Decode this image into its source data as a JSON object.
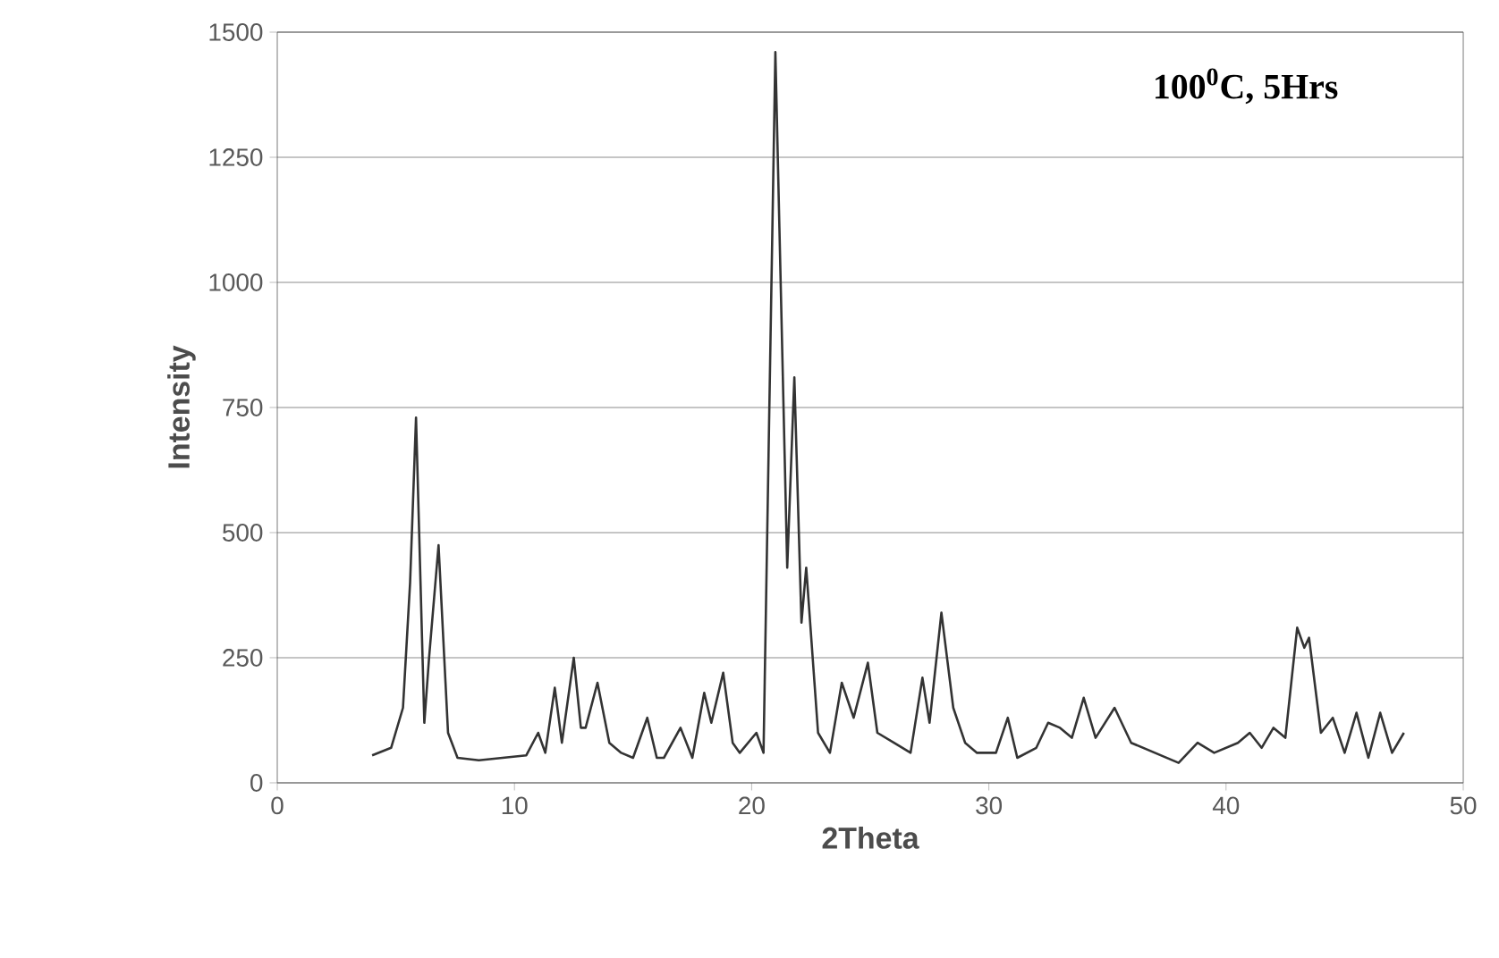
{
  "chart_data": {
    "type": "line",
    "xlabel": "2Theta",
    "ylabel": "Intensity",
    "annotations": [
      "100$^{0}$C, 5Hrs"
    ],
    "xlim": [
      0,
      50
    ],
    "xticks": [
      0,
      10,
      20,
      30,
      40,
      50
    ],
    "ylim": [
      0,
      1500
    ],
    "yticks": [
      0,
      250,
      500,
      750,
      1000,
      1250,
      1500
    ],
    "grid": "y",
    "series": [
      {
        "color": "#333333",
        "x": [
          4,
          4.8,
          5.3,
          5.6,
          5.85,
          6.2,
          6.4,
          6.8,
          7.2,
          7.6,
          8.5,
          9.5,
          10.5,
          11,
          11.3,
          11.7,
          12,
          12.5,
          12.8,
          13,
          13.5,
          14,
          14.5,
          15,
          15.6,
          16,
          16.3,
          17,
          17.5,
          18,
          18.3,
          18.8,
          19.2,
          19.5,
          20.2,
          20.5,
          21,
          21.5,
          21.8,
          22.1,
          22.3,
          22.8,
          23.3,
          23.8,
          24.3,
          24.9,
          25.3,
          26,
          26.7,
          27.2,
          27.5,
          28,
          28.5,
          29,
          29.5,
          30.3,
          30.8,
          31.2,
          32,
          32.5,
          33,
          33.5,
          34,
          34.5,
          35.3,
          36,
          37,
          38,
          38.8,
          39.5,
          40.5,
          41,
          41.5,
          42,
          42.5,
          43,
          43.3,
          43.5,
          44,
          44.5,
          45,
          45.5,
          46,
          46.5,
          47,
          47.5
        ],
        "values": [
          55,
          70,
          150,
          400,
          730,
          120,
          250,
          475,
          100,
          50,
          45,
          50,
          55,
          100,
          60,
          190,
          80,
          250,
          110,
          110,
          200,
          80,
          60,
          50,
          130,
          50,
          50,
          110,
          50,
          180,
          120,
          220,
          80,
          60,
          100,
          60,
          1460,
          430,
          810,
          320,
          430,
          100,
          60,
          200,
          130,
          240,
          100,
          80,
          60,
          210,
          120,
          340,
          150,
          80,
          60,
          60,
          130,
          50,
          70,
          120,
          110,
          90,
          170,
          90,
          150,
          80,
          60,
          40,
          80,
          60,
          80,
          100,
          70,
          110,
          90,
          310,
          270,
          290,
          100,
          130,
          60,
          140,
          50,
          140,
          60,
          100
        ]
      }
    ]
  }
}
